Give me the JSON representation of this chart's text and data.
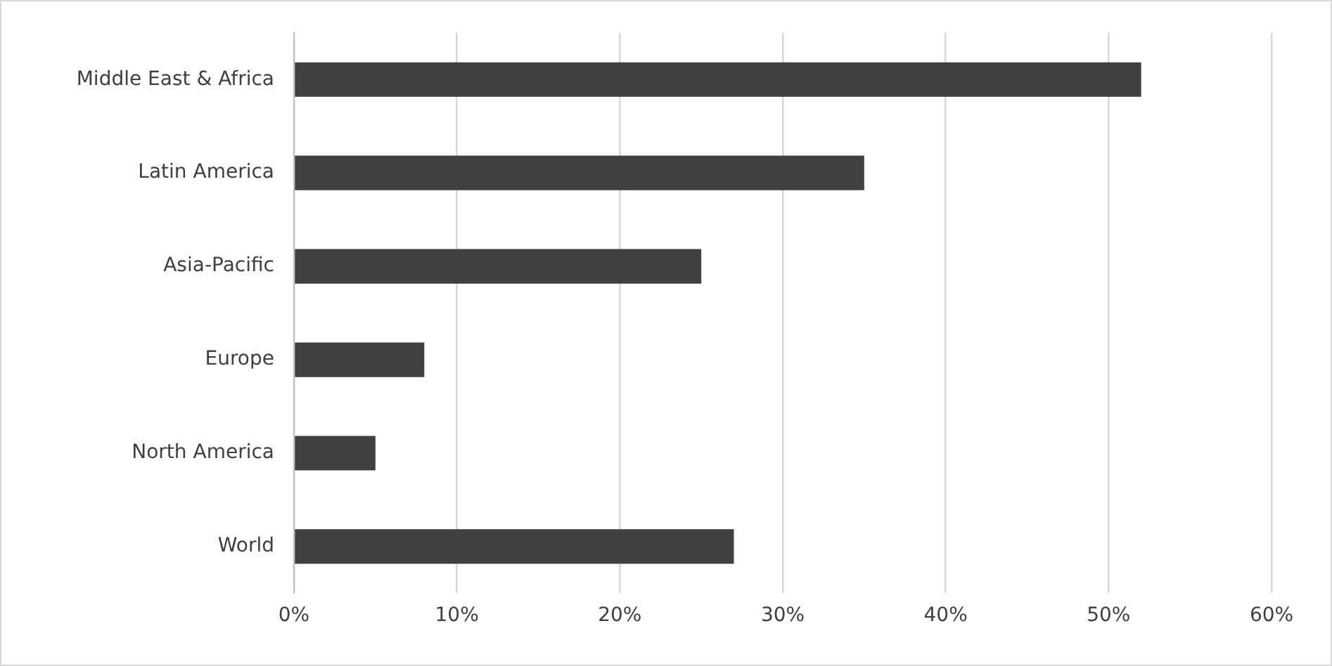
{
  "chart_data": {
    "type": "bar",
    "orientation": "horizontal",
    "categories": [
      "Middle East & Africa",
      "Latin America",
      "Asia-Pacific",
      "Europe",
      "North America",
      "World"
    ],
    "values": [
      52,
      35,
      25,
      8,
      5,
      27
    ],
    "color": "#404040",
    "xlim": [
      0,
      60
    ],
    "xticks": [
      {
        "value": 0,
        "label": "0%"
      },
      {
        "value": 10,
        "label": "10%"
      },
      {
        "value": 20,
        "label": "20%"
      },
      {
        "value": 30,
        "label": "30%"
      },
      {
        "value": 40,
        "label": "40%"
      },
      {
        "value": 50,
        "label": "50%"
      },
      {
        "value": 60,
        "label": "60%"
      }
    ],
    "grid": "x",
    "legend": false
  }
}
